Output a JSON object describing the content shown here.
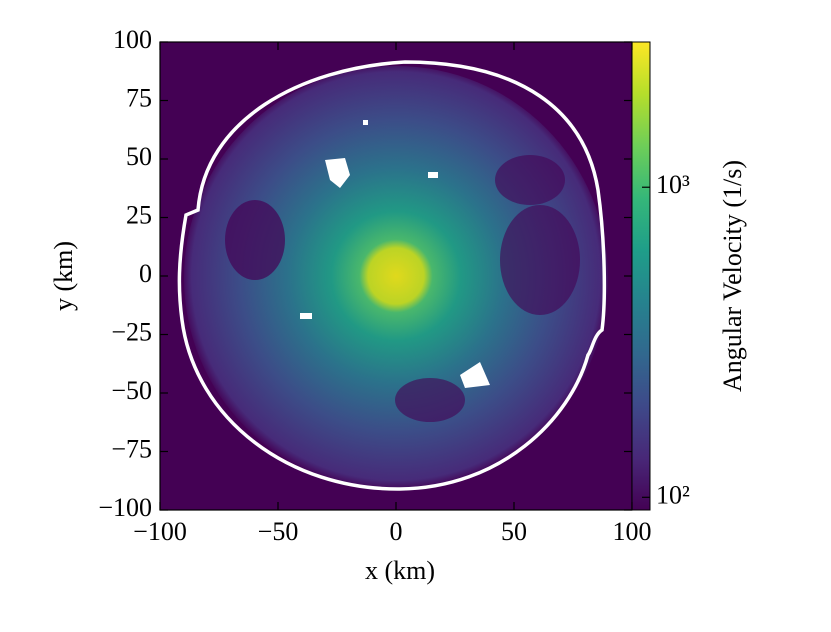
{
  "chart_data": {
    "type": "heatmap",
    "xlabel": "x  (km)",
    "ylabel": "y  (km)",
    "xlim": [
      -100,
      100
    ],
    "xticks": [
      {
        "value": -100,
        "label": "−100"
      },
      {
        "value": -50,
        "label": "−50"
      },
      0,
      50,
      100
    ],
    "ylim": [
      -100,
      100
    ],
    "yticks": [
      {
        "value": -100,
        "label": "−100"
      },
      {
        "value": -75,
        "label": "−75"
      },
      {
        "value": -50,
        "label": "−50"
      },
      {
        "value": -25,
        "label": "−25"
      },
      0,
      25,
      50,
      75,
      100
    ],
    "colorbar_label": "Angular Velocity  (1/s)",
    "colormap": "viridis",
    "clim": [
      91,
      2940
    ],
    "colorbar_log": true,
    "cticks": [
      {
        "value": 100,
        "label": "10²"
      },
      {
        "value": 1000,
        "label": "10³"
      }
    ]
  }
}
